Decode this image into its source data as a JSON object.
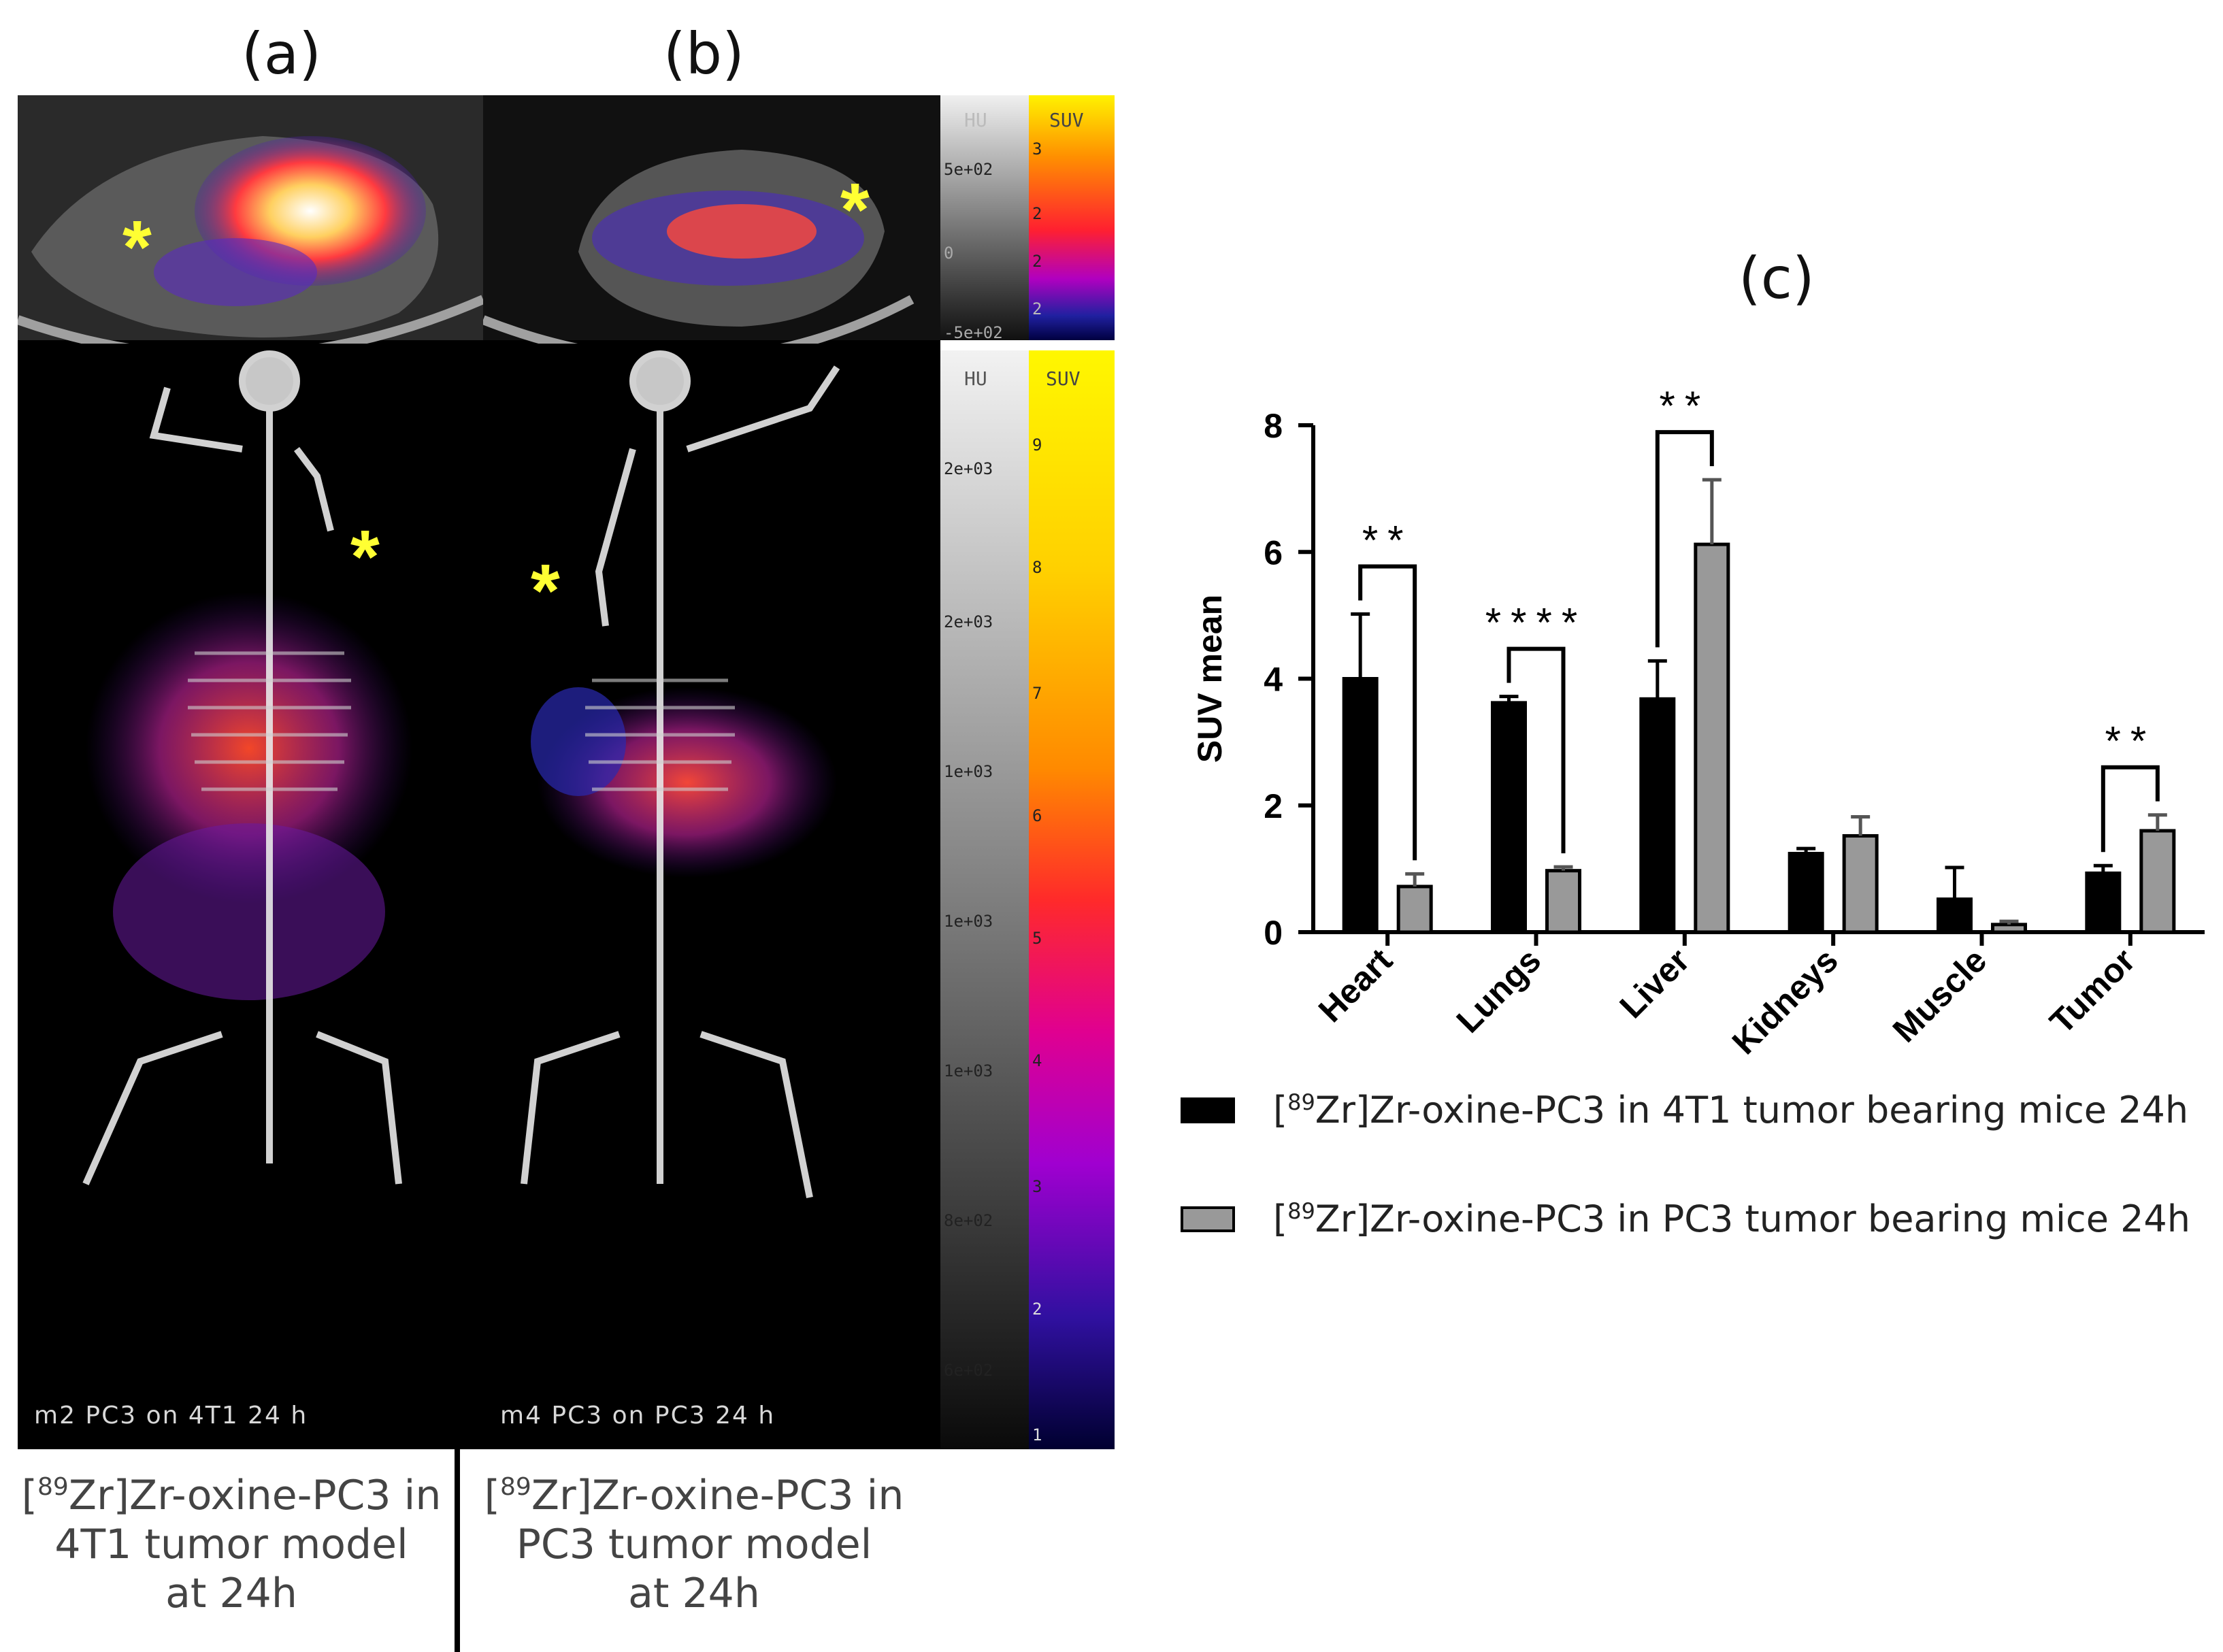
{
  "panels": {
    "a_label": "(a)",
    "b_label": "(b)",
    "c_label": "(c)"
  },
  "scan_a": {
    "label": "m2 PC3 on 4T1 24 h",
    "caption_prefix": "[",
    "caption_sup": "89",
    "caption_line1": "Zr]Zr-oxine-PC3 in",
    "caption_line2": "4T1 tumor model",
    "caption_line3": "at 24h"
  },
  "scan_b": {
    "label": "m4 PC3 on PC3 24 h",
    "caption_prefix": "[",
    "caption_sup": "89",
    "caption_line1": "Zr]Zr-oxine-PC3 in",
    "caption_line2": "PC3 tumor model",
    "caption_line3": "at 24h"
  },
  "tumor_marker": "*",
  "colorbar_top": {
    "hu_title": "HU",
    "suv_title": "SUV",
    "hu_ticks": [
      "5e+02",
      "0",
      "-5e+02"
    ],
    "suv_ticks": [
      "3",
      "2",
      "2",
      "2"
    ]
  },
  "colorbar_main": {
    "hu_title": "HU",
    "suv_title": "SUV",
    "hu_ticks": [
      "2e+03",
      "2e+03",
      "1e+03",
      "1e+03",
      "1e+03",
      "8e+02",
      "6e+02"
    ],
    "suv_ticks": [
      "9",
      "8",
      "7",
      "6",
      "5",
      "4",
      "3",
      "2",
      "1"
    ]
  },
  "colors": {
    "series1": "#000000",
    "series2": "#999999",
    "marker": "#ffff33"
  },
  "chart_data": {
    "type": "bar",
    "title": "(c)",
    "ylabel": "SUV mean",
    "xlabel": "",
    "ylim": [
      0,
      8
    ],
    "yticks": [
      0,
      2,
      4,
      6,
      8
    ],
    "categories": [
      "Heart",
      "Lungs",
      "Liver",
      "Kidneys",
      "Muscle",
      "Tumor"
    ],
    "series": [
      {
        "name": "[89Zr]Zr-oxine-PC3 in 4T1 tumor bearing mice 24h",
        "name_prefix": "[",
        "name_sup": "89",
        "name_rest": "Zr]Zr-oxine-PC3 in 4T1 tumor bearing mice 24h",
        "values": [
          4.0,
          3.62,
          3.68,
          1.24,
          0.52,
          0.93
        ],
        "errors": [
          1.02,
          0.1,
          0.6,
          0.08,
          0.5,
          0.12
        ]
      },
      {
        "name": "[89Zr]Zr-oxine-PC3 in PC3 tumor bearing mice 24h",
        "name_prefix": "[",
        "name_sup": "89",
        "name_rest": "Zr]Zr-oxine-PC3 in PC3 tumor bearing mice 24h",
        "values": [
          0.72,
          0.97,
          6.12,
          1.52,
          0.12,
          1.6
        ],
        "errors": [
          0.2,
          0.06,
          1.02,
          0.3,
          0.05,
          0.25
        ]
      }
    ],
    "significance": [
      {
        "category": "Heart",
        "stars": "**"
      },
      {
        "category": "Lungs",
        "stars": "****"
      },
      {
        "category": "Liver",
        "stars": "**"
      },
      {
        "category": "Tumor",
        "stars": "**"
      }
    ]
  }
}
